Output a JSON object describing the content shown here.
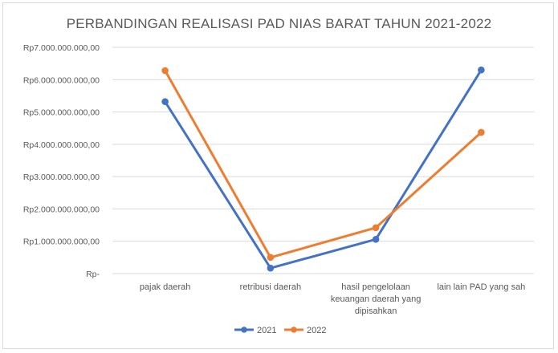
{
  "chart_data": {
    "type": "line",
    "title": "PERBANDINGAN REALISASI PAD NIAS BARAT TAHUN 2021-2022",
    "xlabel": "",
    "ylabel": "",
    "ylim": [
      0,
      7000000000
    ],
    "y_ticks": [
      0,
      1000000000,
      2000000000,
      3000000000,
      4000000000,
      5000000000,
      6000000000,
      7000000000
    ],
    "y_tick_labels": [
      "Rp-",
      "Rp1.000.000.000,00",
      "Rp2.000.000.000,00",
      "Rp3.000.000.000,00",
      "Rp4.000.000.000,00",
      "Rp5.000.000.000,00",
      "Rp6.000.000.000,00",
      "Rp7.000.000.000,00"
    ],
    "categories": [
      "pajak daerah",
      "retribusi daerah",
      "hasil pengelolaan keuangan daerah yang dipisahkan",
      "lain lain PAD yang sah"
    ],
    "category_lines": [
      [
        "pajak daerah"
      ],
      [
        "retribusi daerah"
      ],
      [
        "hasil pengelolaan",
        "keuangan daerah yang",
        "dipisahkan"
      ],
      [
        "lain lain PAD yang sah"
      ]
    ],
    "series": [
      {
        "name": "2021",
        "color": "#4472c4",
        "values": [
          5320000000,
          170000000,
          1060000000,
          6300000000
        ]
      },
      {
        "name": "2022",
        "color": "#ed7d31",
        "values": [
          6280000000,
          500000000,
          1420000000,
          4370000000
        ]
      }
    ],
    "grid": true,
    "legend_position": "bottom"
  }
}
